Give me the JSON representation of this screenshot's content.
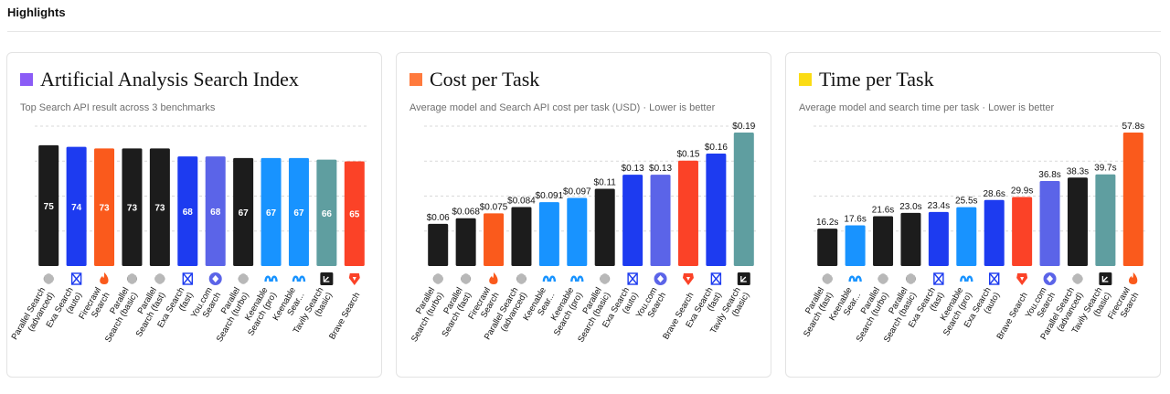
{
  "page": {
    "title": "Highlights"
  },
  "colors": {
    "parallel": "#1c1c1c",
    "exa": "#1d3bf0",
    "firecrawl": "#fa5a1c",
    "youcom": "#5b64e8",
    "keenable": "#1893ff",
    "tavily": "#5f9ea0",
    "brave": "#fb4227"
  },
  "chart_data": [
    {
      "type": "bar",
      "title": "Artificial Analysis Search Index",
      "subtitle": "Top Search API result across 3 benchmarks",
      "title_swatch": "#8b5cf6",
      "value_position": "inside",
      "ylim": [
        0,
        80
      ],
      "grid": true,
      "categories": [
        {
          "label": [
            "Parallel Search",
            "(advanced)"
          ],
          "icon": "parallel-icon",
          "color": "#1c1c1c"
        },
        {
          "label": [
            "Exa Search",
            "(auto)"
          ],
          "icon": "exa-icon",
          "color": "#1d3bf0"
        },
        {
          "label": [
            "Firecrawl",
            "Search"
          ],
          "icon": "firecrawl-icon",
          "color": "#fa5a1c"
        },
        {
          "label": [
            "Parallel",
            "Search (basic)"
          ],
          "icon": "parallel-icon",
          "color": "#1c1c1c"
        },
        {
          "label": [
            "Parallel",
            "Search (fast)"
          ],
          "icon": "parallel-icon",
          "color": "#1c1c1c"
        },
        {
          "label": [
            "Exa Search",
            "(fast)"
          ],
          "icon": "exa-icon",
          "color": "#1d3bf0"
        },
        {
          "label": [
            "You.com",
            "Search"
          ],
          "icon": "youcom-icon",
          "color": "#5b64e8"
        },
        {
          "label": [
            "Parallel",
            "Search (turbo)"
          ],
          "icon": "parallel-icon",
          "color": "#1c1c1c"
        },
        {
          "label": [
            "Keenable",
            "Search (pro)"
          ],
          "icon": "keenable-icon",
          "color": "#1893ff"
        },
        {
          "label": [
            "Keenable",
            "Sear..."
          ],
          "icon": "keenable-icon",
          "color": "#1893ff"
        },
        {
          "label": [
            "Tavily Search",
            "(basic)"
          ],
          "icon": "tavily-icon",
          "color": "#5f9ea0"
        },
        {
          "label": [
            "Brave Search"
          ],
          "icon": "brave-icon",
          "color": "#fb4227"
        }
      ],
      "values": [
        75,
        74,
        73,
        73,
        73,
        68,
        68,
        67,
        67,
        67,
        66,
        65
      ],
      "value_labels": [
        "75",
        "74",
        "73",
        "73",
        "73",
        "68",
        "68",
        "67",
        "67",
        "67",
        "66",
        "65"
      ]
    },
    {
      "type": "bar",
      "title": "Cost per Task",
      "subtitle": "Average model and Search API cost per task (USD) · Lower is better",
      "title_swatch": "#ff7a3d",
      "value_position": "above",
      "ylim": [
        0,
        0.19
      ],
      "grid": true,
      "categories": [
        {
          "label": [
            "Parallel",
            "Search (turbo)"
          ],
          "icon": "parallel-icon",
          "color": "#1c1c1c"
        },
        {
          "label": [
            "Parallel",
            "Search (fast)"
          ],
          "icon": "parallel-icon",
          "color": "#1c1c1c"
        },
        {
          "label": [
            "Firecrawl",
            "Search"
          ],
          "icon": "firecrawl-icon",
          "color": "#fa5a1c"
        },
        {
          "label": [
            "Parallel Search",
            "(advanced)"
          ],
          "icon": "parallel-icon",
          "color": "#1c1c1c"
        },
        {
          "label": [
            "Keenable",
            "Sear..."
          ],
          "icon": "keenable-icon",
          "color": "#1893ff"
        },
        {
          "label": [
            "Keenable",
            "Search (pro)"
          ],
          "icon": "keenable-icon",
          "color": "#1893ff"
        },
        {
          "label": [
            "Parallel",
            "Search (basic)"
          ],
          "icon": "parallel-icon",
          "color": "#1c1c1c"
        },
        {
          "label": [
            "Exa Search",
            "(auto)"
          ],
          "icon": "exa-icon",
          "color": "#1d3bf0"
        },
        {
          "label": [
            "You.com",
            "Search"
          ],
          "icon": "youcom-icon",
          "color": "#5b64e8"
        },
        {
          "label": [
            "Brave Search"
          ],
          "icon": "brave-icon",
          "color": "#fb4227"
        },
        {
          "label": [
            "Exa Search",
            "(fast)"
          ],
          "icon": "exa-icon",
          "color": "#1d3bf0"
        },
        {
          "label": [
            "Tavily Search",
            "(basic)"
          ],
          "icon": "tavily-icon",
          "color": "#5f9ea0"
        }
      ],
      "values": [
        0.06,
        0.068,
        0.075,
        0.084,
        0.091,
        0.097,
        0.11,
        0.13,
        0.13,
        0.15,
        0.16,
        0.19
      ],
      "value_labels": [
        "$0.06",
        "$0.068",
        "$0.075",
        "$0.084",
        "$0.091",
        "$0.097",
        "$0.11",
        "$0.13",
        "$0.13",
        "$0.15",
        "$0.16",
        "$0.19"
      ]
    },
    {
      "type": "bar",
      "title": "Time per Task",
      "subtitle": "Average model and search time per task · Lower is better",
      "title_swatch": "#fbdc14",
      "value_position": "above",
      "ylim": [
        0,
        57.8
      ],
      "grid": true,
      "categories": [
        {
          "label": [
            "Parallel",
            "Search (fast)"
          ],
          "icon": "parallel-icon",
          "color": "#1c1c1c"
        },
        {
          "label": [
            "Keenable",
            "Sear..."
          ],
          "icon": "keenable-icon",
          "color": "#1893ff"
        },
        {
          "label": [
            "Parallel",
            "Search (turbo)"
          ],
          "icon": "parallel-icon",
          "color": "#1c1c1c"
        },
        {
          "label": [
            "Parallel",
            "Search (basic)"
          ],
          "icon": "parallel-icon",
          "color": "#1c1c1c"
        },
        {
          "label": [
            "Exa Search",
            "(fast)"
          ],
          "icon": "exa-icon",
          "color": "#1d3bf0"
        },
        {
          "label": [
            "Keenable",
            "Search (pro)"
          ],
          "icon": "keenable-icon",
          "color": "#1893ff"
        },
        {
          "label": [
            "Exa Search",
            "(auto)"
          ],
          "icon": "exa-icon",
          "color": "#1d3bf0"
        },
        {
          "label": [
            "Brave Search"
          ],
          "icon": "brave-icon",
          "color": "#fb4227"
        },
        {
          "label": [
            "You.com",
            "Search"
          ],
          "icon": "youcom-icon",
          "color": "#5b64e8"
        },
        {
          "label": [
            "Parallel Search",
            "(advanced)"
          ],
          "icon": "parallel-icon",
          "color": "#1c1c1c"
        },
        {
          "label": [
            "Tavily Search",
            "(basic)"
          ],
          "icon": "tavily-icon",
          "color": "#5f9ea0"
        },
        {
          "label": [
            "Firecrawl",
            "Search"
          ],
          "icon": "firecrawl-icon",
          "color": "#fa5a1c"
        }
      ],
      "values": [
        16.2,
        17.6,
        21.6,
        23.0,
        23.4,
        25.5,
        28.6,
        29.9,
        36.8,
        38.3,
        39.7,
        57.8
      ],
      "value_labels": [
        "16.2s",
        "17.6s",
        "21.6s",
        "23.0s",
        "23.4s",
        "25.5s",
        "28.6s",
        "29.9s",
        "36.8s",
        "38.3s",
        "39.7s",
        "57.8s"
      ]
    }
  ]
}
